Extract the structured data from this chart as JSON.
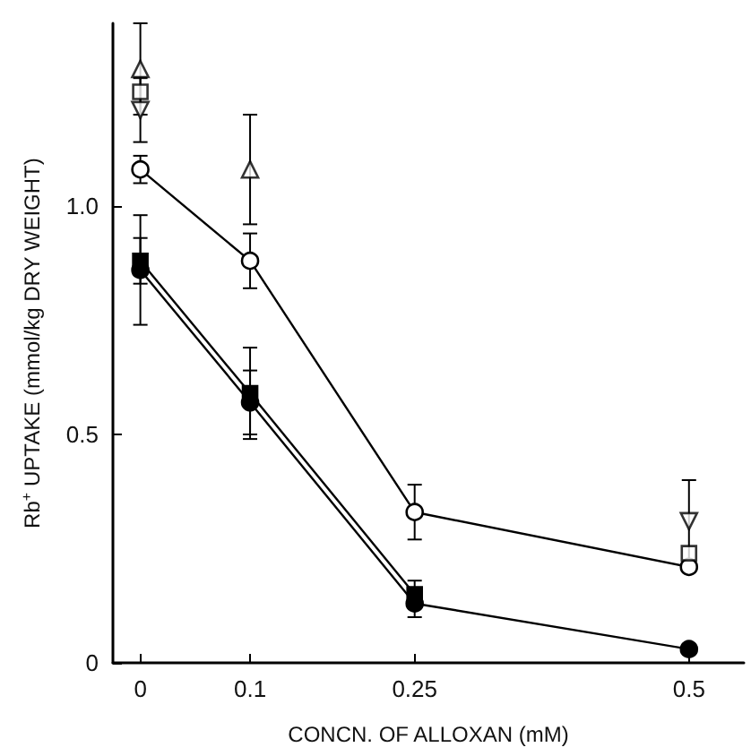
{
  "chart_data": {
    "type": "line",
    "xlabel": "CONCN. OF ALLOXAN (mM)",
    "ylabel": "Rb$^{+}$ UPTAKE (mmol/kg DRY WEIGHT)",
    "xlim": [
      -0.025,
      0.55
    ],
    "xticks": [
      0,
      0.1,
      0.25,
      0.5
    ],
    "ylim": [
      0,
      1.4
    ],
    "yticks": [
      0,
      0.5,
      {
        "value": 1,
        "label": "1.0"
      }
    ],
    "grid": false,
    "line_style": "solid",
    "series": [
      {
        "color": "#ffffff",
        "marker": "circle",
        "x": [
          0,
          0.1,
          0.25,
          0.5
        ],
        "values": [
          1.08,
          0.88,
          0.33,
          0.21
        ],
        "errors": [
          0.03,
          0.06,
          0.06,
          null
        ]
      },
      {
        "color": "#000000",
        "marker": "square",
        "x": [
          0,
          0.1,
          0.25
        ],
        "values": [
          0.88,
          0.59,
          0.15
        ],
        "errors": [
          0.05,
          0.1,
          0.03
        ]
      },
      {
        "color": "#000000",
        "marker": "circle",
        "x": [
          0,
          0.1,
          0.25,
          0.5
        ],
        "values": [
          0.86,
          0.57,
          0.13,
          0.03
        ],
        "errors": [
          0.12,
          0.07,
          0.03,
          null
        ]
      },
      {
        "type": "scatter",
        "color": "#ffffff",
        "marker": "triangle",
        "x": [
          0,
          0.1
        ],
        "values": [
          1.3,
          1.08
        ],
        "errors": [
          0.1,
          0.12
        ]
      },
      {
        "type": "scatter",
        "color": "#ffffff",
        "marker": "square",
        "x": [
          0,
          0.5
        ],
        "values": [
          1.25,
          0.24
        ],
        "errors": [
          null,
          null
        ]
      },
      {
        "type": "scatter",
        "color": "#ffffff",
        "marker": "triangle-down",
        "x": [
          0,
          0.5
        ],
        "values": [
          1.21,
          0.31
        ],
        "errors": [
          0.07,
          0.09
        ]
      }
    ]
  }
}
